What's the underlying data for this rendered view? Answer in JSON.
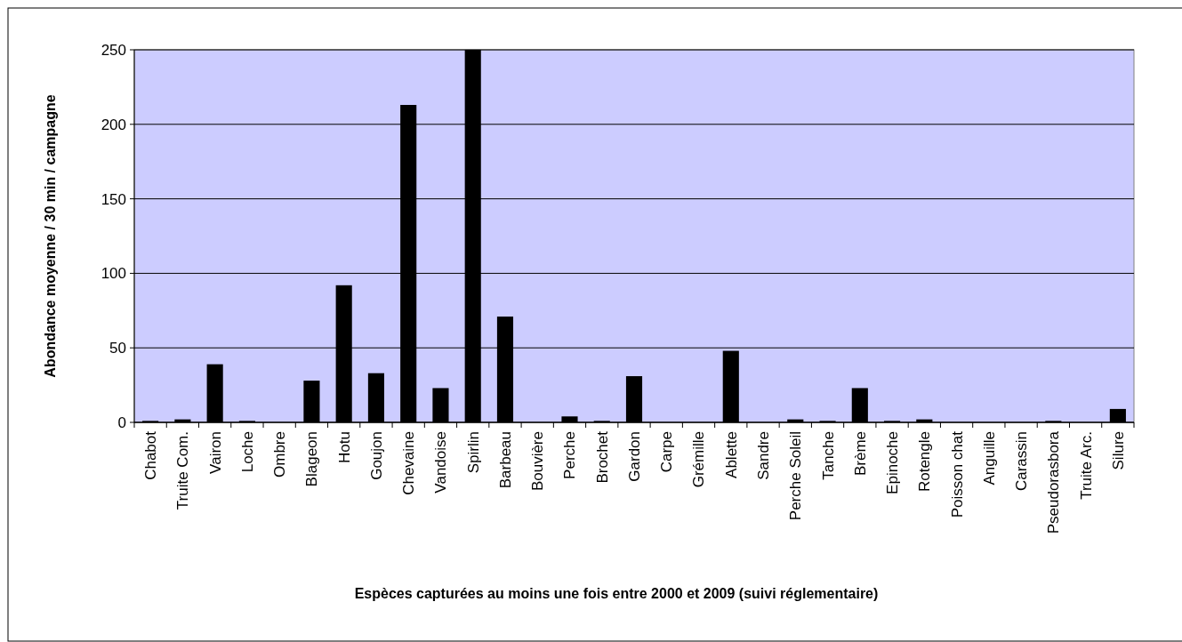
{
  "chart_data": {
    "type": "bar",
    "xlabel": "Espèces capturées au moins une fois entre 2000 et 2009 (suivi réglementaire)",
    "ylabel": "Abondance moyenne / 30 min / campagne",
    "categories": [
      "Chabot",
      "Truite Com.",
      "Vairon",
      "Loche",
      "Ombre",
      "Blageon",
      "Hotu",
      "Goujon",
      "Chevaine",
      "Vandoise",
      "Spirlin",
      "Barbeau",
      "Bouvière",
      "Perche",
      "Brochet",
      "Gardon",
      "Carpe",
      "Grémille",
      "Ablette",
      "Sandre",
      "Perche Soleil",
      "Tanche",
      "Brème",
      "Epinoche",
      "Rotengle",
      "Poisson chat",
      "Anguille",
      "Carassin",
      "Pseudorasbora",
      "Truite Arc.",
      "Silure"
    ],
    "values": [
      1,
      2,
      39,
      1,
      0,
      28,
      92,
      33,
      213,
      23,
      250,
      71,
      0,
      4,
      1,
      31,
      0,
      0,
      48,
      0,
      2,
      1,
      23,
      1,
      2,
      0,
      0,
      0,
      1,
      0,
      9
    ],
    "color": "#000000",
    "ylim": [
      0,
      250
    ],
    "yticks": [
      0,
      50,
      100,
      150,
      200,
      250
    ],
    "grid": "y"
  }
}
